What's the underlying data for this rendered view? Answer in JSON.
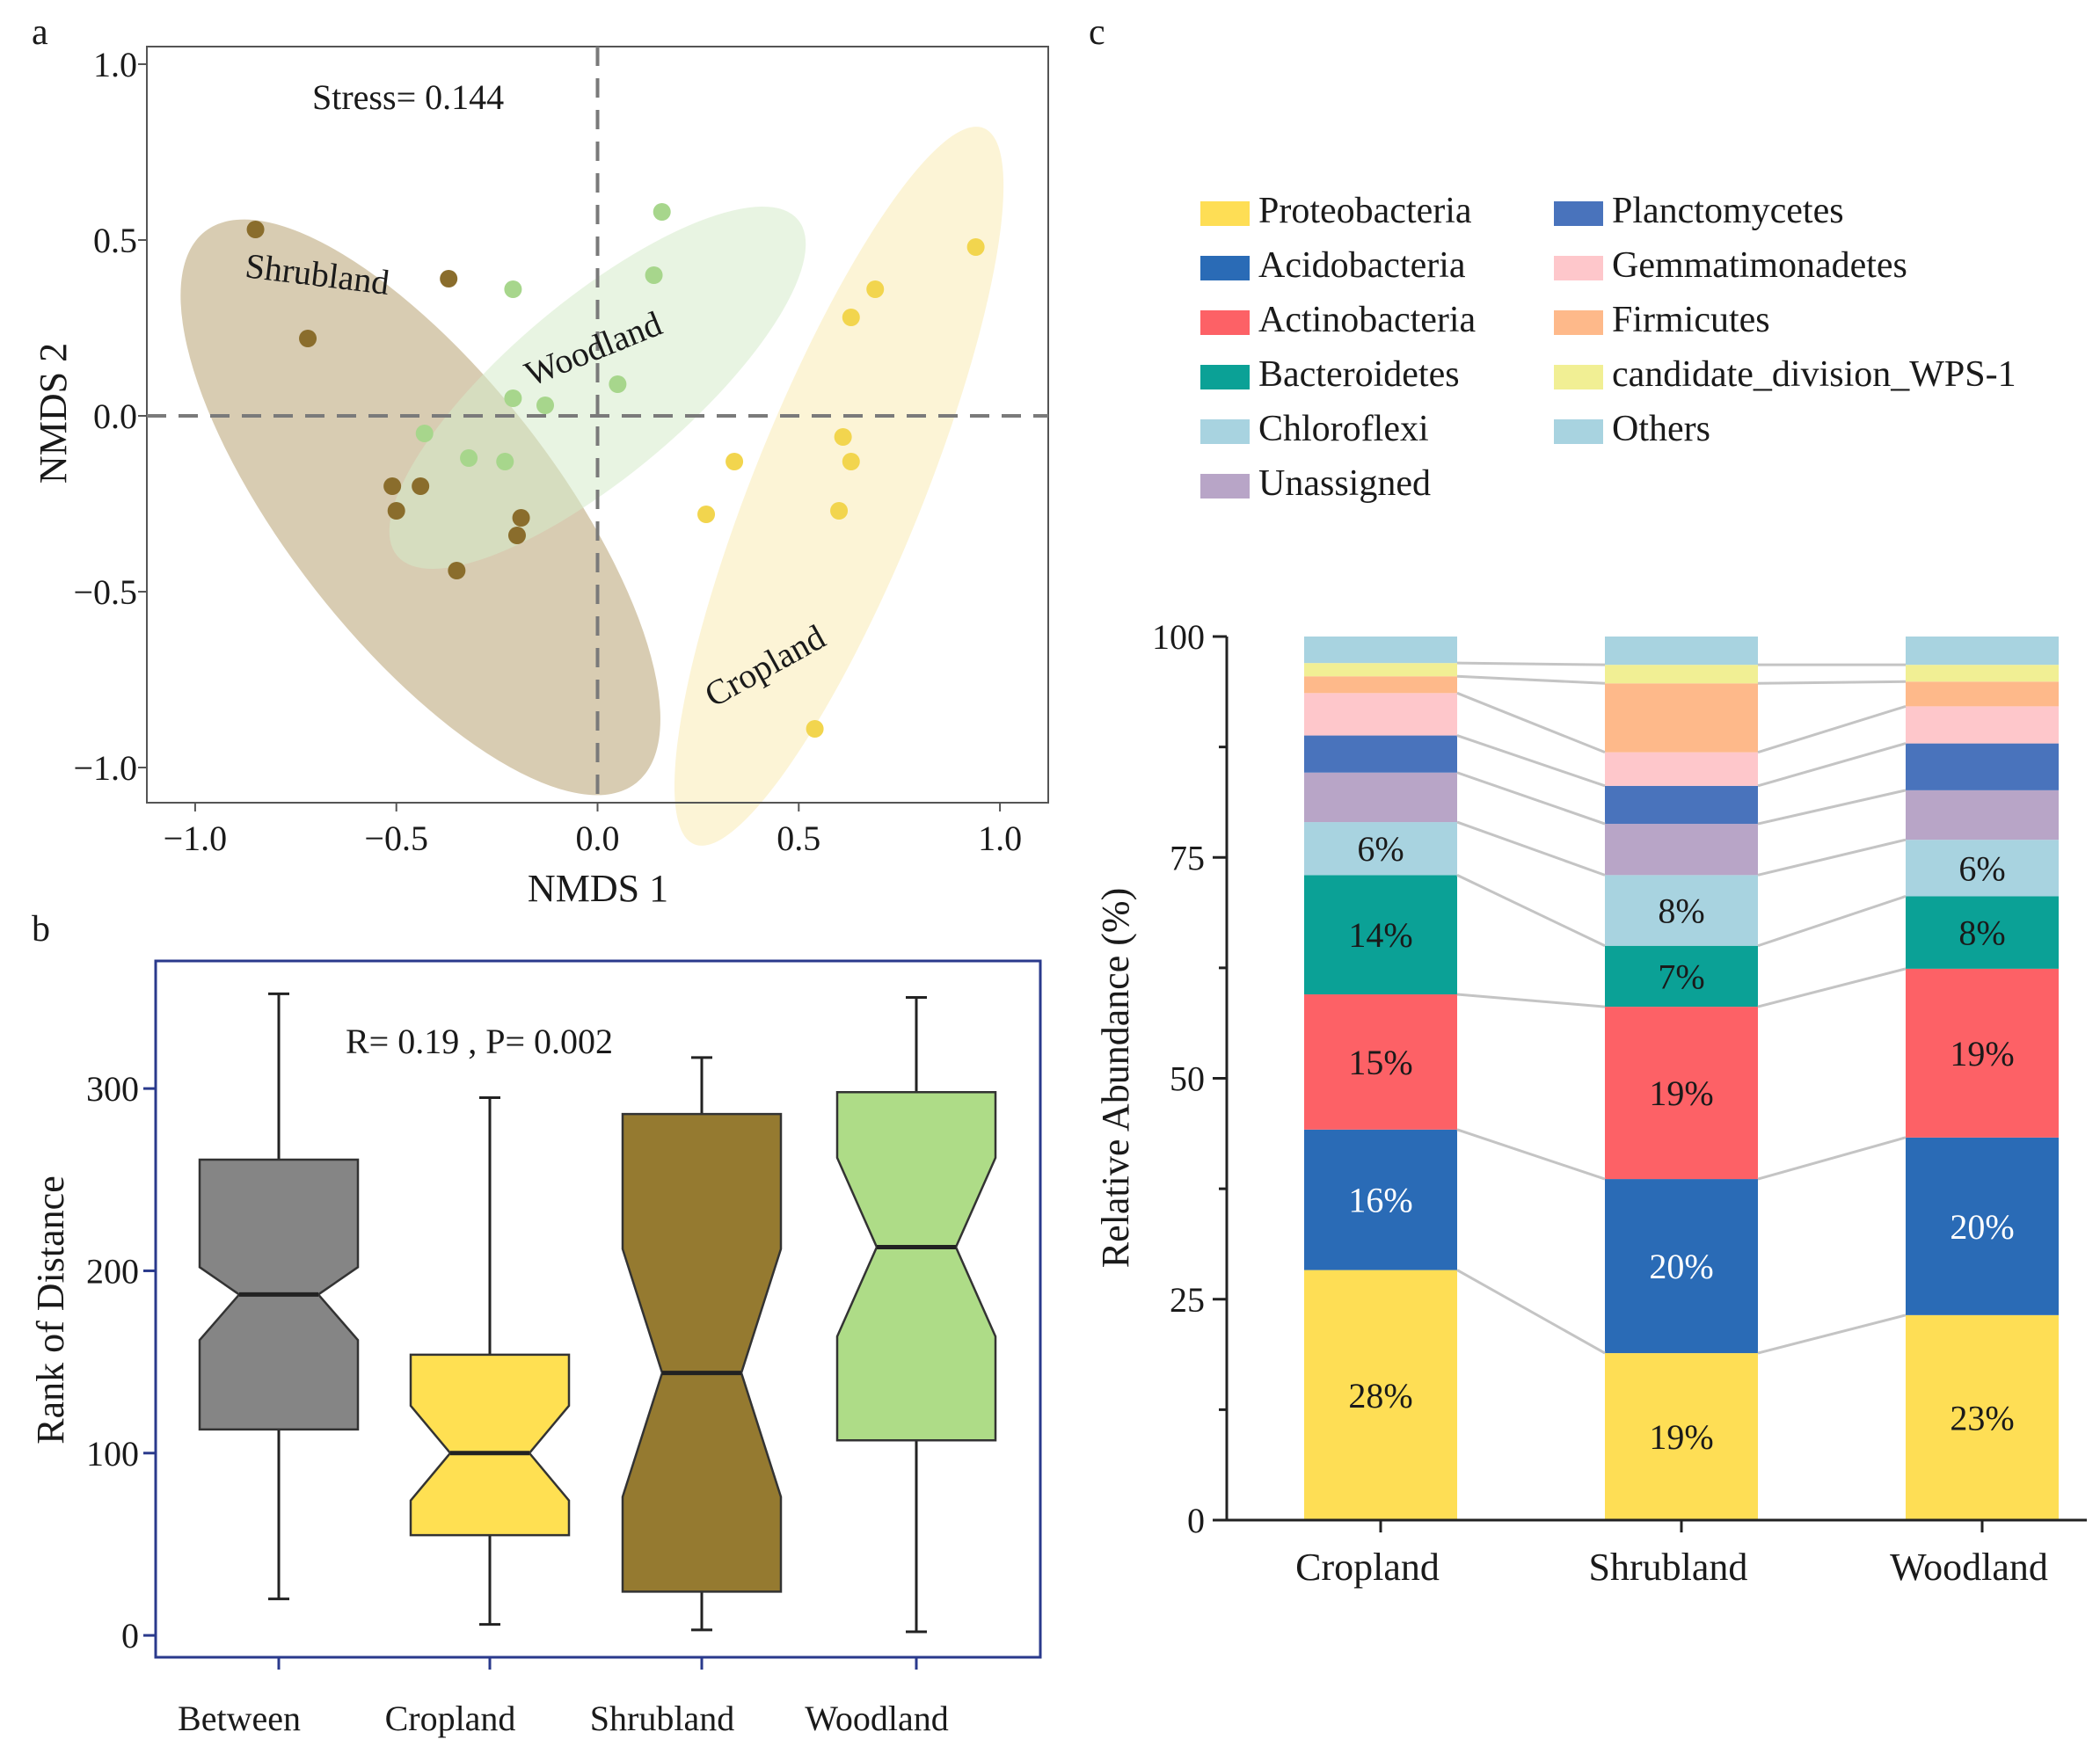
{
  "panels": {
    "a": "a",
    "b": "b",
    "c": "c"
  },
  "chart_data": [
    {
      "type": "scatter",
      "panel": "a",
      "title": "",
      "xlabel": "NMDS 1",
      "ylabel": "NMDS 2",
      "xlim": [
        -1.12,
        1.12
      ],
      "ylim": [
        -1.1,
        1.05
      ],
      "xticks": [
        -1.0,
        -0.5,
        0.0,
        0.5,
        1.0
      ],
      "xtick_labels": [
        "−1.0",
        "−0.5",
        "0.0",
        "0.5",
        "1.0"
      ],
      "yticks": [
        -1.0,
        -0.5,
        0.0,
        0.5,
        1.0
      ],
      "ytick_labels": [
        "−1.0",
        "−0.5",
        "0.0",
        "0.5",
        "1.0"
      ],
      "stress_label": "Stress= 0.144",
      "series": [
        {
          "name": "Shrubland",
          "color": "#8a6d2c",
          "ellipse_color": "#c9b994",
          "ellipse": {
            "cx": -0.44,
            "cy": -0.26,
            "rx": 0.87,
            "ry": 0.38,
            "angle_deg": -52
          },
          "label_pos": [
            -0.7,
            0.37
          ],
          "label_angle": 7,
          "points": [
            [
              -0.85,
              0.53
            ],
            [
              -0.37,
              0.39
            ],
            [
              -0.72,
              0.22
            ],
            [
              -0.51,
              -0.2
            ],
            [
              -0.44,
              -0.2
            ],
            [
              -0.5,
              -0.27
            ],
            [
              -0.19,
              -0.29
            ],
            [
              -0.2,
              -0.34
            ],
            [
              -0.35,
              -0.44
            ]
          ]
        },
        {
          "name": "Woodland",
          "color": "#a7d68c",
          "ellipse_color": "#d5ebcb",
          "ellipse": {
            "cx": 0.0,
            "cy": 0.08,
            "rx": 0.65,
            "ry": 0.25,
            "angle_deg": 40
          },
          "label_pos": [
            0.0,
            0.16
          ],
          "label_angle": -22,
          "points": [
            [
              0.16,
              0.58
            ],
            [
              -0.21,
              0.36
            ],
            [
              0.14,
              0.4
            ],
            [
              -0.21,
              0.05
            ],
            [
              -0.13,
              0.03
            ],
            [
              0.05,
              0.09
            ],
            [
              -0.43,
              -0.05
            ],
            [
              -0.32,
              -0.12
            ],
            [
              -0.23,
              -0.13
            ]
          ]
        },
        {
          "name": "Cropland",
          "color": "#f2d54e",
          "ellipse_color": "#fbf0c6",
          "ellipse": {
            "cx": 0.6,
            "cy": -0.2,
            "rx": 0.96,
            "ry": 0.24,
            "angle_deg": 68
          },
          "label_pos": [
            0.43,
            -0.74
          ],
          "label_angle": -29,
          "points": [
            [
              0.94,
              0.48
            ],
            [
              0.69,
              0.36
            ],
            [
              0.63,
              0.28
            ],
            [
              0.61,
              -0.06
            ],
            [
              0.63,
              -0.13
            ],
            [
              0.34,
              -0.13
            ],
            [
              0.27,
              -0.28
            ],
            [
              0.6,
              -0.27
            ],
            [
              0.54,
              -0.89
            ]
          ]
        }
      ]
    },
    {
      "type": "box",
      "panel": "b",
      "title": "",
      "xlabel": "",
      "ylabel": "Rank of Distance",
      "ylim": [
        -12,
        370
      ],
      "yticks": [
        0,
        100,
        200,
        300
      ],
      "ytick_labels": [
        "0",
        "100",
        "200",
        "300"
      ],
      "annotation": "R= 0.19 ,  P= 0.002",
      "categories": [
        "Between",
        "Cropland",
        "Shrubland",
        "Woodland"
      ],
      "boxes": [
        {
          "name": "Between",
          "color": "#858585",
          "min": 20,
          "q1": 113,
          "median": 187,
          "q3": 261,
          "max": 352,
          "notch_lo": 162,
          "notch_hi": 202
        },
        {
          "name": "Cropland",
          "color": "#ffe052",
          "min": 6,
          "q1": 55,
          "median": 100,
          "q3": 154,
          "max": 295,
          "notch_lo": 74,
          "notch_hi": 126
        },
        {
          "name": "Shrubland",
          "color": "#957a30",
          "min": 3,
          "q1": 24,
          "median": 144,
          "q3": 286,
          "max": 317,
          "notch_lo": 76,
          "notch_hi": 212
        },
        {
          "name": "Woodland",
          "color": "#aedc87",
          "min": 2,
          "q1": 107,
          "median": 213,
          "q3": 298,
          "max": 350,
          "notch_lo": 164,
          "notch_hi": 262
        }
      ]
    },
    {
      "type": "bar",
      "stacked": true,
      "panel": "c",
      "title": "",
      "xlabel": "",
      "ylabel": "Relative Abundance (%)",
      "ylim": [
        0,
        100
      ],
      "yticks": [
        0,
        25,
        50,
        75,
        100
      ],
      "ytick_labels": [
        "0",
        "25",
        "50",
        "75",
        "100"
      ],
      "categories": [
        "Cropland",
        "Shrubland",
        "Woodland"
      ],
      "series": [
        {
          "name": "Proteobacteria",
          "color": "#fede55",
          "values": [
            28.3,
            18.9,
            23.2
          ],
          "labels": [
            "28%",
            "19%",
            "23%"
          ],
          "label_color": "#1a1a1a"
        },
        {
          "name": "Acidobacteria",
          "color": "#2a6bb6",
          "values": [
            15.9,
            19.7,
            20.1
          ],
          "labels": [
            "16%",
            "20%",
            "20%"
          ],
          "label_color": "#ffffff"
        },
        {
          "name": "Actinobacteria",
          "color": "#fd6166",
          "values": [
            15.3,
            19.5,
            19.1
          ],
          "labels": [
            "15%",
            "19%",
            "19%"
          ],
          "label_color": "#1a1a1a"
        },
        {
          "name": "Bacteroidetes",
          "color": "#0ba196",
          "values": [
            13.5,
            6.9,
            8.2
          ],
          "labels": [
            "14%",
            "7%",
            "8%"
          ],
          "label_color": "#1a1a1a"
        },
        {
          "name": "Chloroflexi",
          "color": "#a8d3e0",
          "values": [
            6.0,
            8.0,
            6.4
          ],
          "labels": [
            "6%",
            "8%",
            "6%"
          ],
          "label_color": "#1a1a1a"
        },
        {
          "name": "Unassigned",
          "color": "#b8a5c7",
          "values": [
            5.6,
            5.8,
            5.6
          ],
          "labels": [
            "",
            "",
            ""
          ],
          "label_color": "#1a1a1a"
        },
        {
          "name": "Planctomycetes",
          "color": "#4973bc",
          "values": [
            4.2,
            4.3,
            5.3
          ],
          "labels": [
            "",
            "",
            ""
          ],
          "label_color": "#1a1a1a"
        },
        {
          "name": "Gemmatimonadetes",
          "color": "#fec7cb",
          "values": [
            4.8,
            3.8,
            4.2
          ],
          "labels": [
            "",
            "",
            ""
          ],
          "label_color": "#1a1a1a"
        },
        {
          "name": "Firmicutes",
          "color": "#feb98a",
          "values": [
            1.9,
            7.8,
            2.8
          ],
          "labels": [
            "",
            "",
            ""
          ],
          "label_color": "#1a1a1a"
        },
        {
          "name": "candidate_division_WPS-1",
          "color": "#f1ef94",
          "values": [
            1.5,
            2.1,
            1.9
          ],
          "labels": [
            "",
            "",
            ""
          ],
          "label_color": "#1a1a1a"
        },
        {
          "name": "Others",
          "color": "#a8d3e0",
          "values": [
            3.0,
            3.2,
            3.2
          ],
          "labels": [
            "",
            "",
            ""
          ],
          "label_color": "#1a1a1a"
        }
      ]
    }
  ]
}
